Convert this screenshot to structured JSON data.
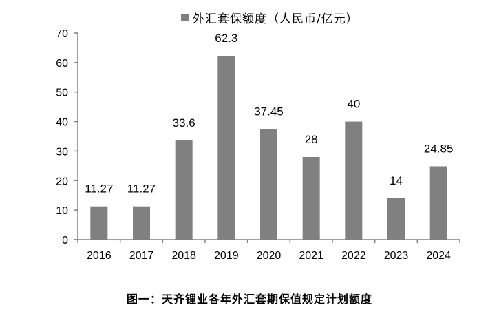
{
  "chart_data": {
    "type": "bar",
    "title": "图一：天齐锂业各年外汇套期保值规定计划额度",
    "xlabel": "",
    "ylabel": "",
    "categories": [
      "2016",
      "2017",
      "2018",
      "2019",
      "2020",
      "2021",
      "2022",
      "2023",
      "2024"
    ],
    "series": [
      {
        "name": "外汇套保额度（人民币/亿元）",
        "values": [
          11.27,
          11.27,
          33.6,
          62.3,
          37.45,
          28,
          40,
          14,
          24.85
        ],
        "color": "#808080"
      }
    ],
    "data_labels": [
      "11.27",
      "11.27",
      "33.6",
      "62.3",
      "37.45",
      "28",
      "40",
      "14",
      "24.85"
    ],
    "ylim": [
      0,
      70
    ],
    "yticks": [
      0,
      10,
      20,
      30,
      40,
      50,
      60,
      70
    ],
    "grid": false,
    "legend_position": "top"
  },
  "legend": {
    "label": "外汇套保额度（人民币/亿元）"
  },
  "caption": "图一：天齐锂业各年外汇套期保值规定计划额度",
  "colors": {
    "bar": "#808080",
    "axis": "#808080",
    "text": "#000000"
  }
}
